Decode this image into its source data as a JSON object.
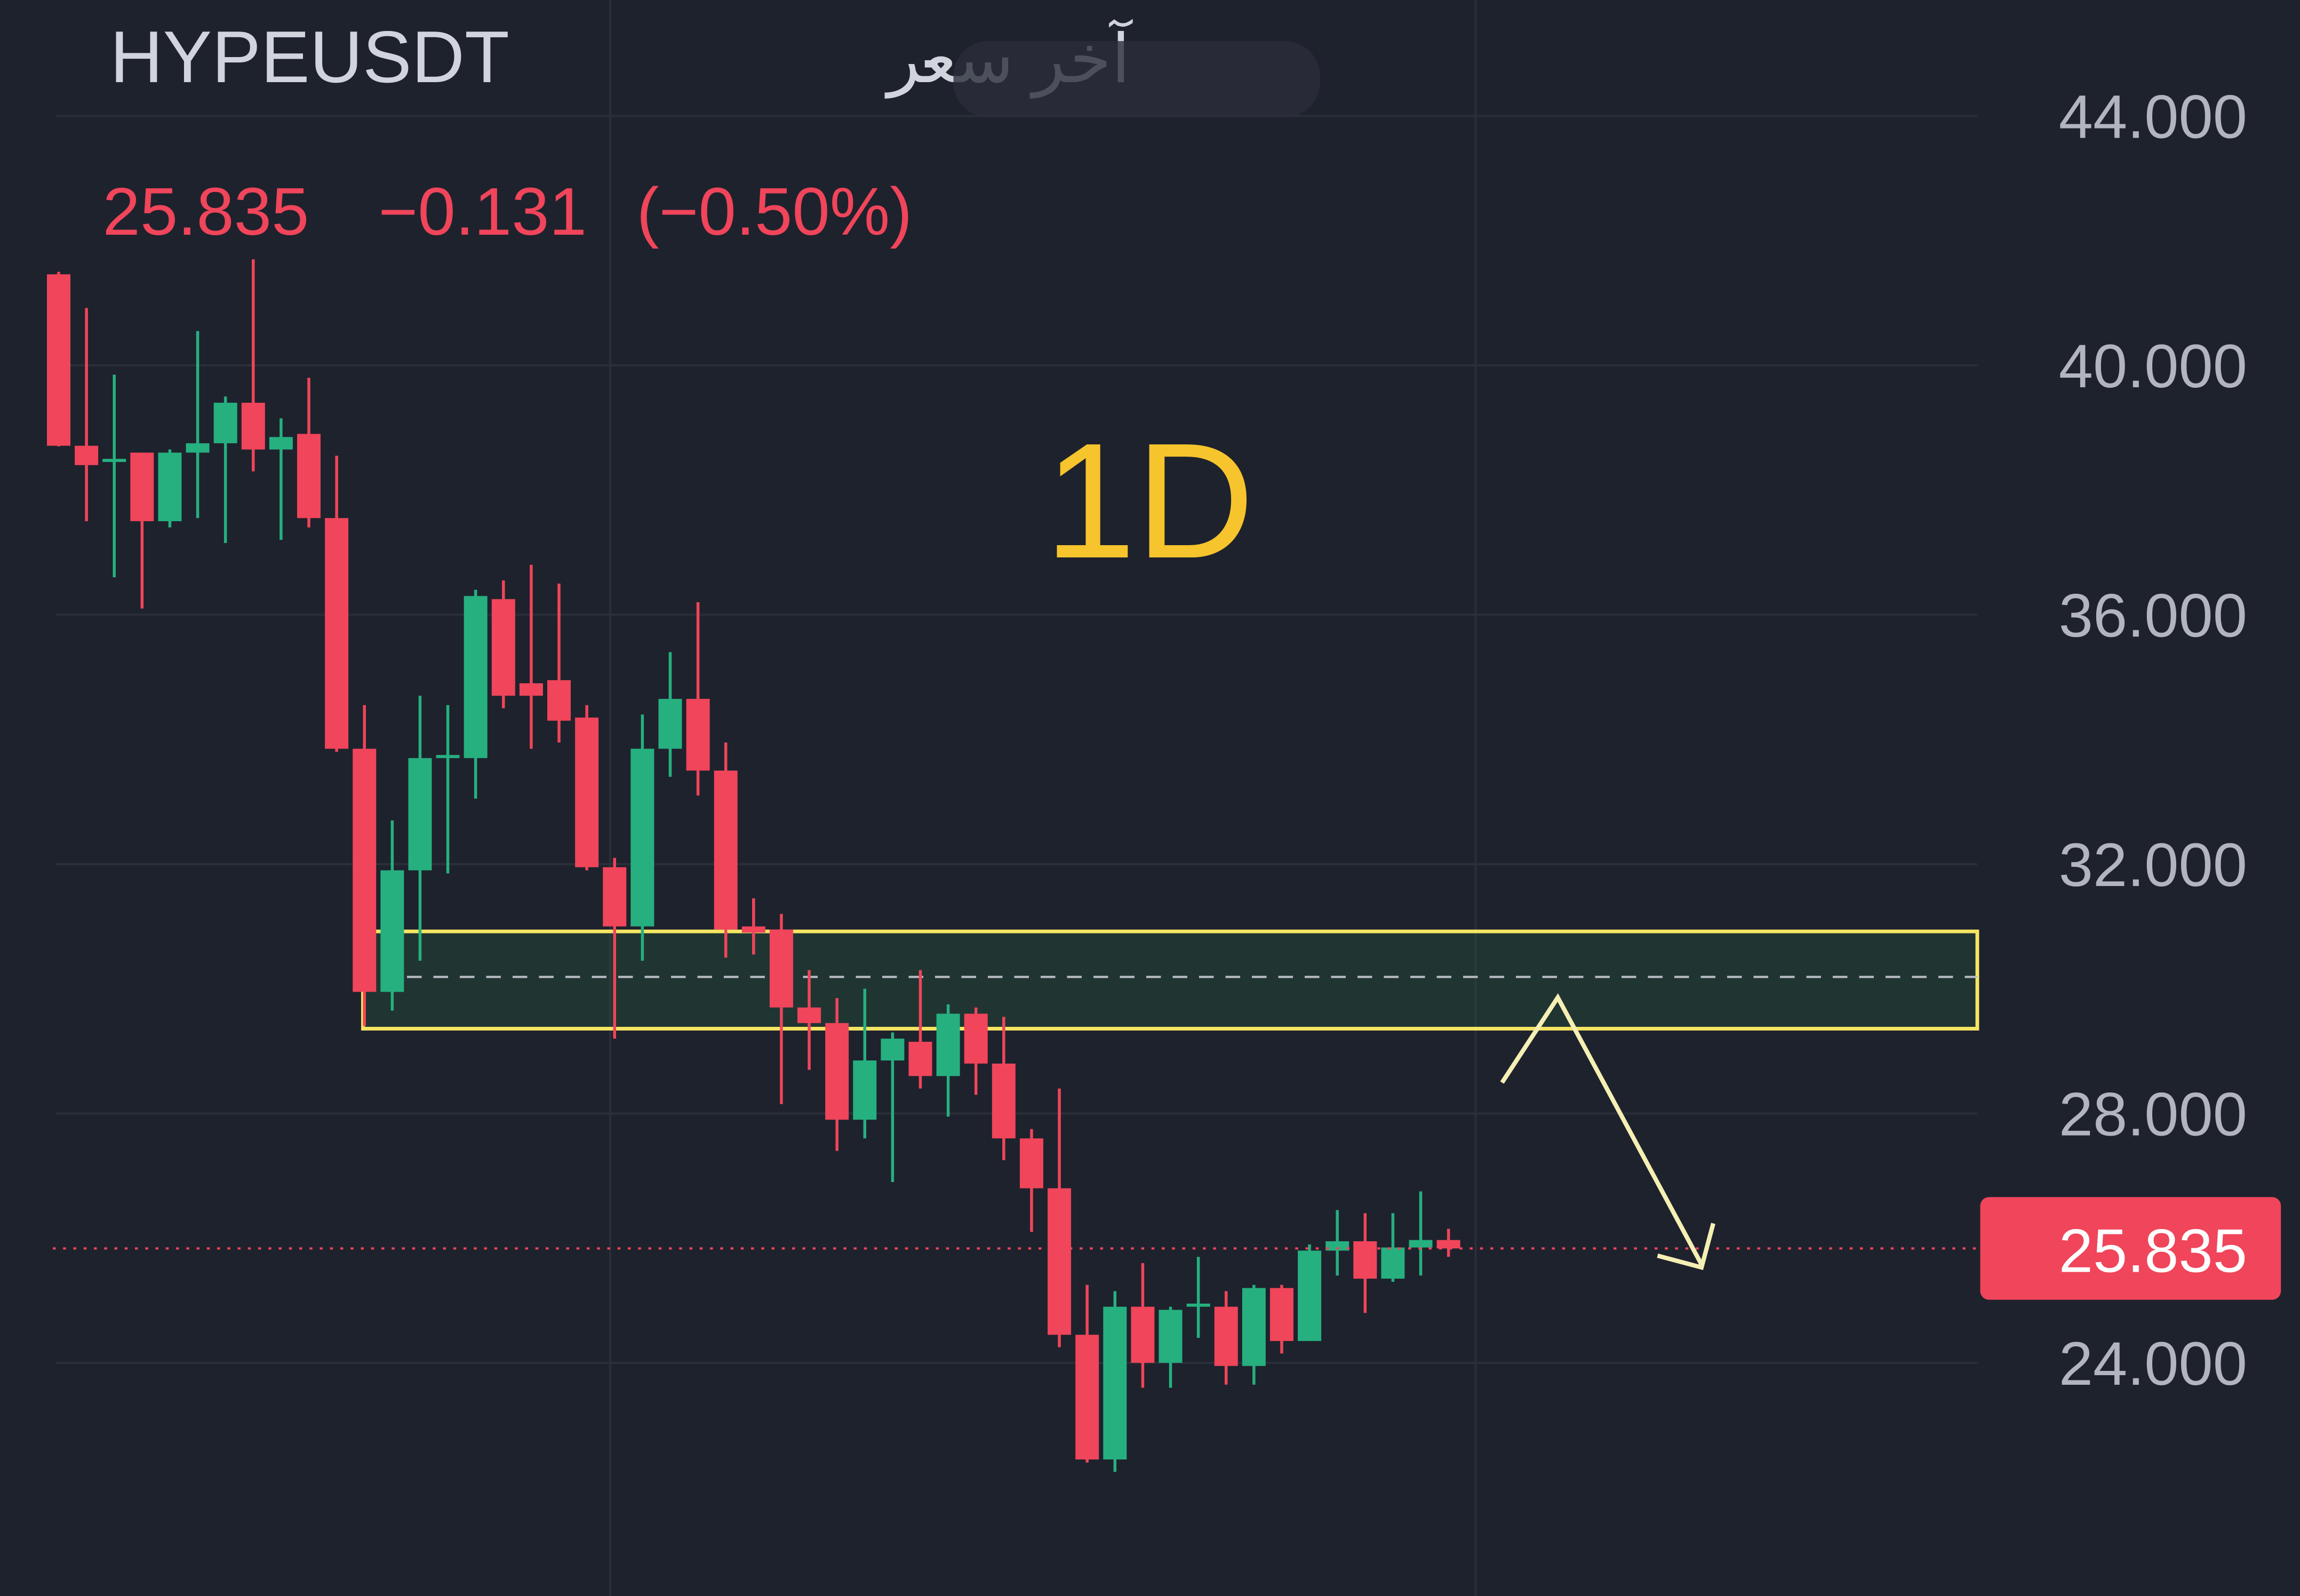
{
  "chart_data": {
    "type": "candlestick",
    "header": {
      "symbol": "HYPEUSDT",
      "label": "آخر سعر",
      "separator": "·",
      "price": "25.835",
      "change": "−0.131",
      "change_pct": "(−0.50%)"
    },
    "annotation": "1D",
    "up_color": "#26b07f",
    "down_color": "#f0455a",
    "open": [
      41.46,
      38.71,
      38.45,
      38.6,
      37.5,
      38.6,
      38.75,
      39.4,
      38.65,
      38.9,
      37.55,
      33.85,
      29.95,
      31.9,
      33.7,
      33.7,
      36.25,
      34.9,
      34.95,
      34.35,
      31.95,
      31.0,
      33.85,
      34.65,
      33.5,
      31.0,
      30.95,
      29.7,
      29.45,
      27.9,
      28.85,
      29.15,
      28.6,
      29.6,
      28.8,
      27.6,
      26.8,
      24.45,
      22.45,
      24.9,
      24.0,
      24.9,
      24.9,
      23.95,
      25.2,
      24.35,
      25.8,
      25.95,
      25.35,
      25.85,
      25.97
    ],
    "high": [
      41.5,
      40.92,
      39.85,
      38.6,
      38.65,
      40.55,
      39.5,
      41.7,
      39.15,
      39.8,
      38.55,
      34.55,
      32.7,
      34.7,
      34.55,
      36.4,
      36.55,
      36.8,
      36.5,
      34.55,
      32.1,
      34.4,
      35.4,
      36.2,
      33.95,
      31.45,
      31.2,
      30.3,
      29.85,
      30.0,
      29.3,
      30.3,
      29.75,
      29.7,
      29.55,
      27.75,
      28.4,
      25.25,
      25.15,
      25.6,
      24.9,
      25.7,
      25.15,
      25.25,
      25.25,
      25.9,
      26.45,
      26.4,
      26.4,
      26.75,
      26.15
    ],
    "low": [
      38.7,
      37.5,
      36.6,
      36.1,
      37.4,
      37.55,
      37.15,
      38.3,
      37.2,
      37.4,
      33.8,
      29.4,
      29.65,
      30.45,
      31.85,
      33.05,
      34.5,
      33.85,
      33.95,
      31.9,
      29.2,
      30.45,
      33.4,
      33.1,
      30.5,
      30.55,
      28.15,
      28.7,
      27.4,
      27.6,
      26.9,
      28.4,
      27.95,
      28.3,
      27.25,
      26.1,
      24.25,
      22.4,
      22.25,
      23.6,
      23.6,
      24.4,
      23.65,
      23.65,
      24.15,
      24.35,
      25.4,
      24.8,
      25.3,
      25.4,
      25.7
    ],
    "close": [
      38.71,
      38.4,
      38.5,
      37.5,
      38.6,
      38.75,
      39.4,
      38.65,
      38.85,
      37.55,
      33.85,
      29.95,
      31.9,
      33.7,
      33.75,
      36.3,
      34.7,
      34.7,
      34.3,
      31.95,
      31.0,
      33.85,
      34.65,
      33.5,
      30.95,
      30.9,
      29.7,
      29.45,
      27.9,
      28.85,
      29.2,
      28.6,
      29.6,
      28.8,
      27.6,
      26.8,
      24.45,
      22.45,
      24.9,
      24.0,
      24.85,
      24.95,
      23.95,
      25.2,
      24.35,
      25.8,
      25.95,
      25.35,
      25.85,
      25.97,
      25.835
    ],
    "zone": {
      "top": 30.92,
      "bottom": 29.36,
      "mid": 30.19
    },
    "ylim": [
      20.26,
      45.86
    ],
    "yticks": [
      {
        "value": 24,
        "label": "24.000"
      },
      {
        "value": 28,
        "label": "28.000"
      },
      {
        "value": 32,
        "label": "32.000"
      },
      {
        "value": 36,
        "label": "36.000"
      },
      {
        "value": 40,
        "label": "40.000"
      },
      {
        "value": 44,
        "label": "44.000"
      }
    ],
    "grid": true
  }
}
